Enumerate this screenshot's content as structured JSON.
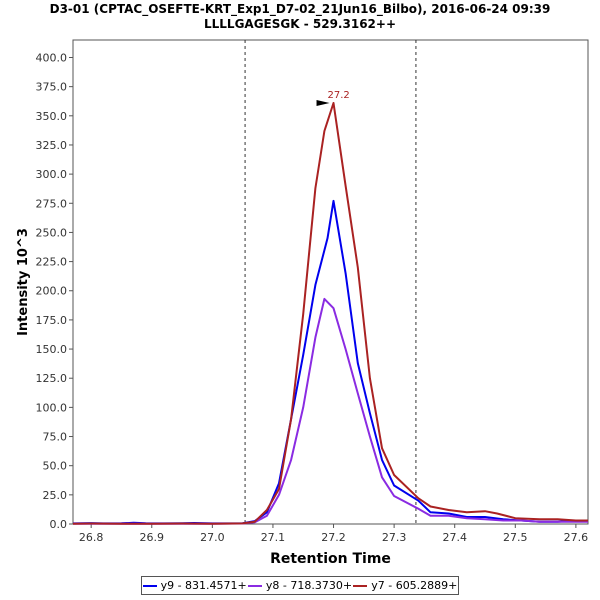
{
  "chart_data": {
    "type": "line",
    "title": "D3-01 (CPTAC_OSEFTE-KRT_Exp1_D7-02_21Jun16_Bilbo), 2016-06-24 09:39",
    "subtitle": "LLLLGAGESGK - 529.3162++",
    "xlabel": "Retention Time",
    "ylabel": "Intensity 10^3",
    "xlim": [
      26.77,
      27.62
    ],
    "ylim": [
      0,
      415
    ],
    "x_ticks": [
      "26.8",
      "26.9",
      "27.0",
      "27.1",
      "27.2",
      "27.3",
      "27.4",
      "27.5",
      "27.6"
    ],
    "y_ticks": [
      "0.0",
      "25.0",
      "50.0",
      "75.0",
      "100.0",
      "125.0",
      "150.0",
      "175.0",
      "200.0",
      "225.0",
      "250.0",
      "275.0",
      "300.0",
      "325.0",
      "350.0",
      "375.0",
      "400.0"
    ],
    "vlines": [
      27.054,
      27.336
    ],
    "peak_annotation": {
      "label": "27.2",
      "x": 27.2,
      "y": 361
    },
    "legend_position": "bottom",
    "grid": false,
    "series": [
      {
        "name": "y9 - 831.4571+",
        "color": "#0000ee",
        "points": [
          [
            26.77,
            0.5
          ],
          [
            26.8,
            0.8
          ],
          [
            26.82,
            0.5
          ],
          [
            26.85,
            0.6
          ],
          [
            26.87,
            1.0
          ],
          [
            26.89,
            0.6
          ],
          [
            26.92,
            0.5
          ],
          [
            26.95,
            0.6
          ],
          [
            26.97,
            0.9
          ],
          [
            27.0,
            0.5
          ],
          [
            27.03,
            0.5
          ],
          [
            27.05,
            0.7
          ],
          [
            27.07,
            2.5
          ],
          [
            27.09,
            10
          ],
          [
            27.11,
            35
          ],
          [
            27.13,
            90
          ],
          [
            27.15,
            145
          ],
          [
            27.17,
            205
          ],
          [
            27.19,
            245
          ],
          [
            27.2,
            277
          ],
          [
            27.22,
            215
          ],
          [
            27.24,
            138
          ],
          [
            27.26,
            95
          ],
          [
            27.28,
            55
          ],
          [
            27.3,
            33
          ],
          [
            27.34,
            20
          ],
          [
            27.36,
            10
          ],
          [
            27.39,
            9
          ],
          [
            27.42,
            6
          ],
          [
            27.45,
            6
          ],
          [
            27.48,
            4
          ],
          [
            27.51,
            3
          ],
          [
            27.54,
            2
          ],
          [
            27.57,
            2
          ],
          [
            27.6,
            3
          ],
          [
            27.62,
            3
          ]
        ]
      },
      {
        "name": "y8 - 718.3730+",
        "color": "#8a2be2",
        "points": [
          [
            26.77,
            0.2
          ],
          [
            26.8,
            0.3
          ],
          [
            26.83,
            0.2
          ],
          [
            26.86,
            0.3
          ],
          [
            26.9,
            0.2
          ],
          [
            26.95,
            0.3
          ],
          [
            27.0,
            0.2
          ],
          [
            27.05,
            0.4
          ],
          [
            27.07,
            1.5
          ],
          [
            27.09,
            7
          ],
          [
            27.11,
            25
          ],
          [
            27.13,
            55
          ],
          [
            27.15,
            100
          ],
          [
            27.17,
            160
          ],
          [
            27.185,
            193
          ],
          [
            27.2,
            185
          ],
          [
            27.22,
            150
          ],
          [
            27.24,
            112
          ],
          [
            27.26,
            75
          ],
          [
            27.28,
            40
          ],
          [
            27.3,
            24
          ],
          [
            27.34,
            13
          ],
          [
            27.36,
            7
          ],
          [
            27.39,
            7
          ],
          [
            27.42,
            5
          ],
          [
            27.45,
            4
          ],
          [
            27.48,
            3
          ],
          [
            27.51,
            3
          ],
          [
            27.54,
            2
          ],
          [
            27.57,
            2
          ],
          [
            27.6,
            2
          ],
          [
            27.62,
            2
          ]
        ]
      },
      {
        "name": "y7 - 605.2889+",
        "color": "#aa2222",
        "points": [
          [
            26.77,
            0.3
          ],
          [
            26.8,
            0.4
          ],
          [
            26.85,
            0.3
          ],
          [
            26.9,
            0.3
          ],
          [
            26.95,
            0.4
          ],
          [
            27.0,
            0.3
          ],
          [
            27.05,
            0.5
          ],
          [
            27.07,
            2
          ],
          [
            27.09,
            12
          ],
          [
            27.11,
            30
          ],
          [
            27.13,
            90
          ],
          [
            27.15,
            180
          ],
          [
            27.17,
            288
          ],
          [
            27.185,
            337
          ],
          [
            27.2,
            361
          ],
          [
            27.22,
            290
          ],
          [
            27.24,
            220
          ],
          [
            27.26,
            125
          ],
          [
            27.28,
            65
          ],
          [
            27.3,
            42
          ],
          [
            27.34,
            22
          ],
          [
            27.36,
            15
          ],
          [
            27.39,
            12
          ],
          [
            27.42,
            10
          ],
          [
            27.45,
            11
          ],
          [
            27.47,
            9
          ],
          [
            27.5,
            5
          ],
          [
            27.54,
            4
          ],
          [
            27.57,
            4
          ],
          [
            27.6,
            3
          ],
          [
            27.62,
            3
          ]
        ]
      }
    ]
  }
}
